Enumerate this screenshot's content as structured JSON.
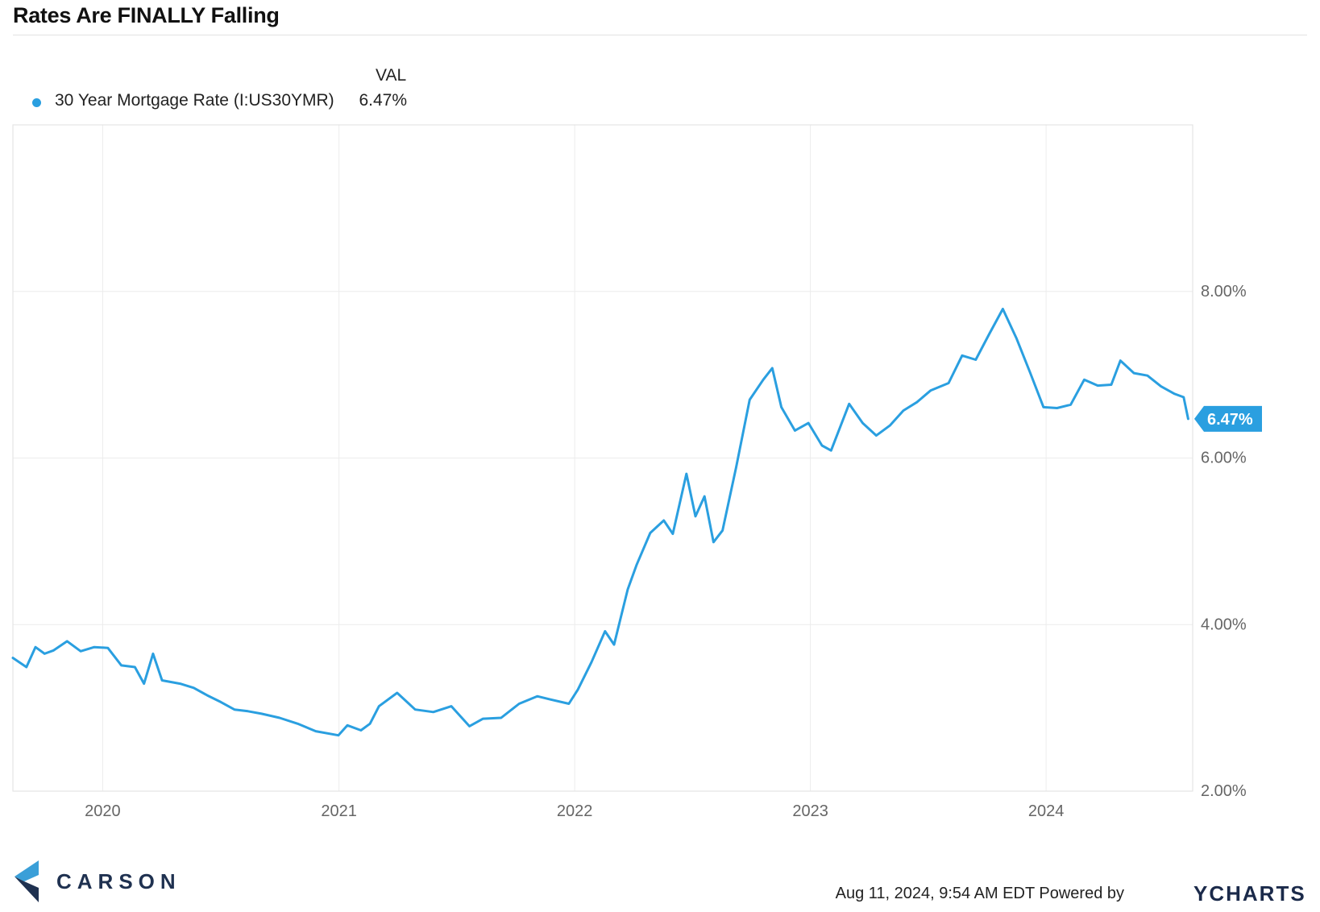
{
  "header": {
    "title": "Rates Are FINALLY Falling"
  },
  "legend": {
    "column_header": "VAL",
    "items": [
      {
        "name": "30 Year Mortgage Rate (I:US30YMR)",
        "value": "6.47%",
        "color": "#2a9fe0"
      }
    ]
  },
  "last_value_label": "6.47%",
  "footer": {
    "timestamp": "Aug 11, 2024, 9:54 AM EDT Powered by",
    "ycharts_brand": "CHARTS",
    "ycharts_y": "Y",
    "logo_text": "CARSON"
  },
  "colors": {
    "line": "#2a9fe0",
    "grid": "#ececec",
    "axis_text": "#666666",
    "brand_navy": "#1f3150",
    "logo_blue": "#3a9fd8"
  },
  "chart_data": {
    "type": "line",
    "title": "Rates Are FINALLY Falling",
    "xlabel": "",
    "ylabel": "",
    "x_ticks": [
      "2020",
      "2021",
      "2022",
      "2023",
      "2024"
    ],
    "y_ticks": [
      "2.00%",
      "4.00%",
      "6.00%",
      "8.00%"
    ],
    "ylim": [
      2,
      10
    ],
    "xlim": [
      "2019-08-15",
      "2024-08-15"
    ],
    "grid": true,
    "legend_position": "top-left",
    "series": [
      {
        "name": "30 Year Mortgage Rate (I:US30YMR)",
        "color": "#2a9fe0",
        "points": [
          [
            "2019-08-15",
            3.6
          ],
          [
            "2019-09-05",
            3.49
          ],
          [
            "2019-09-19",
            3.73
          ],
          [
            "2019-10-03",
            3.65
          ],
          [
            "2019-10-17",
            3.69
          ],
          [
            "2019-11-07",
            3.8
          ],
          [
            "2019-11-28",
            3.68
          ],
          [
            "2019-12-19",
            3.73
          ],
          [
            "2020-01-09",
            3.72
          ],
          [
            "2020-01-30",
            3.51
          ],
          [
            "2020-02-20",
            3.49
          ],
          [
            "2020-03-05",
            3.29
          ],
          [
            "2020-03-19",
            3.65
          ],
          [
            "2020-04-02",
            3.33
          ],
          [
            "2020-04-30",
            3.29
          ],
          [
            "2020-05-21",
            3.24
          ],
          [
            "2020-06-11",
            3.15
          ],
          [
            "2020-07-02",
            3.07
          ],
          [
            "2020-07-23",
            2.98
          ],
          [
            "2020-08-13",
            2.96
          ],
          [
            "2020-09-03",
            2.93
          ],
          [
            "2020-10-01",
            2.88
          ],
          [
            "2020-10-29",
            2.81
          ],
          [
            "2020-11-26",
            2.72
          ],
          [
            "2020-12-31",
            2.67
          ],
          [
            "2021-01-14",
            2.79
          ],
          [
            "2021-02-04",
            2.73
          ],
          [
            "2021-02-18",
            2.81
          ],
          [
            "2021-03-04",
            3.02
          ],
          [
            "2021-04-01",
            3.18
          ],
          [
            "2021-04-29",
            2.98
          ],
          [
            "2021-05-27",
            2.95
          ],
          [
            "2021-06-24",
            3.02
          ],
          [
            "2021-07-22",
            2.78
          ],
          [
            "2021-08-12",
            2.87
          ],
          [
            "2021-09-09",
            2.88
          ],
          [
            "2021-10-07",
            3.05
          ],
          [
            "2021-11-04",
            3.14
          ],
          [
            "2021-11-25",
            3.1
          ],
          [
            "2021-12-23",
            3.05
          ],
          [
            "2022-01-06",
            3.22
          ],
          [
            "2022-01-27",
            3.55
          ],
          [
            "2022-02-17",
            3.92
          ],
          [
            "2022-03-03",
            3.76
          ],
          [
            "2022-03-24",
            4.42
          ],
          [
            "2022-04-07",
            4.72
          ],
          [
            "2022-04-28",
            5.1
          ],
          [
            "2022-05-19",
            5.25
          ],
          [
            "2022-06-02",
            5.09
          ],
          [
            "2022-06-23",
            5.81
          ],
          [
            "2022-07-07",
            5.3
          ],
          [
            "2022-07-21",
            5.54
          ],
          [
            "2022-08-04",
            4.99
          ],
          [
            "2022-08-18",
            5.13
          ],
          [
            "2022-09-08",
            5.89
          ],
          [
            "2022-09-29",
            6.7
          ],
          [
            "2022-10-20",
            6.94
          ],
          [
            "2022-11-03",
            7.08
          ],
          [
            "2022-11-17",
            6.61
          ],
          [
            "2022-12-08",
            6.33
          ],
          [
            "2022-12-29",
            6.42
          ],
          [
            "2023-01-19",
            6.15
          ],
          [
            "2023-02-02",
            6.09
          ],
          [
            "2023-03-02",
            6.65
          ],
          [
            "2023-03-23",
            6.42
          ],
          [
            "2023-04-13",
            6.27
          ],
          [
            "2023-05-04",
            6.39
          ],
          [
            "2023-05-25",
            6.57
          ],
          [
            "2023-06-15",
            6.67
          ],
          [
            "2023-07-06",
            6.81
          ],
          [
            "2023-08-03",
            6.9
          ],
          [
            "2023-08-24",
            7.23
          ],
          [
            "2023-09-14",
            7.18
          ],
          [
            "2023-10-05",
            7.49
          ],
          [
            "2023-10-26",
            7.79
          ],
          [
            "2023-11-16",
            7.44
          ],
          [
            "2023-12-07",
            7.03
          ],
          [
            "2023-12-28",
            6.61
          ],
          [
            "2024-01-18",
            6.6
          ],
          [
            "2024-02-08",
            6.64
          ],
          [
            "2024-02-29",
            6.94
          ],
          [
            "2024-03-21",
            6.87
          ],
          [
            "2024-04-11",
            6.88
          ],
          [
            "2024-04-25",
            7.17
          ],
          [
            "2024-05-16",
            7.02
          ],
          [
            "2024-06-06",
            6.99
          ],
          [
            "2024-06-27",
            6.86
          ],
          [
            "2024-07-18",
            6.77
          ],
          [
            "2024-08-01",
            6.73
          ],
          [
            "2024-08-08",
            6.47
          ]
        ]
      }
    ]
  }
}
